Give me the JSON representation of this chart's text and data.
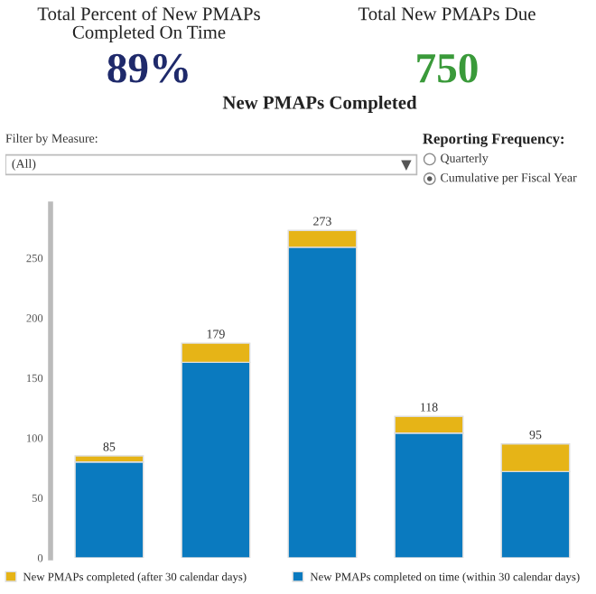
{
  "chart_data": [
    {
      "type": "other",
      "title": "Total Percent of New PMAPs\nCompleted On Time",
      "annotations": [
        "89%"
      ],
      "color": "#1f2a6b"
    },
    {
      "type": "other",
      "title": "Total New PMAPs Due",
      "annotations": [
        "750"
      ],
      "color": "#3a9a3a"
    },
    {
      "type": "other",
      "title": "Filter by Measure:",
      "annotations": [
        "(All)"
      ]
    },
    {
      "type": "other",
      "title": "Reporting Frequency:",
      "annotations": [
        "Quarterly",
        "Cumulative per Fiscal Year"
      ]
    },
    {
      "type": "bar",
      "title": "New PMAPs Completed",
      "stacked": true,
      "categories": [
        null,
        null,
        null,
        null,
        null
      ],
      "series": [
        {
          "name": "New PMAPs completed on time (within 30 calendar days)",
          "color": "#0a7abf",
          "values": [
            80,
            163,
            259,
            104,
            72
          ]
        },
        {
          "name": "New PMAPs completed (after 30 calendar days)",
          "color": "#e6b417",
          "values": [
            5,
            16,
            14,
            14,
            23
          ]
        }
      ],
      "totals": [
        "85",
        "179",
        "273",
        "118",
        "95"
      ],
      "ylim": [
        0,
        295
      ],
      "yticks": [
        0,
        50,
        100,
        150,
        200,
        250
      ],
      "tick_labels": "y",
      "grid": false,
      "legend": "bottom"
    }
  ]
}
